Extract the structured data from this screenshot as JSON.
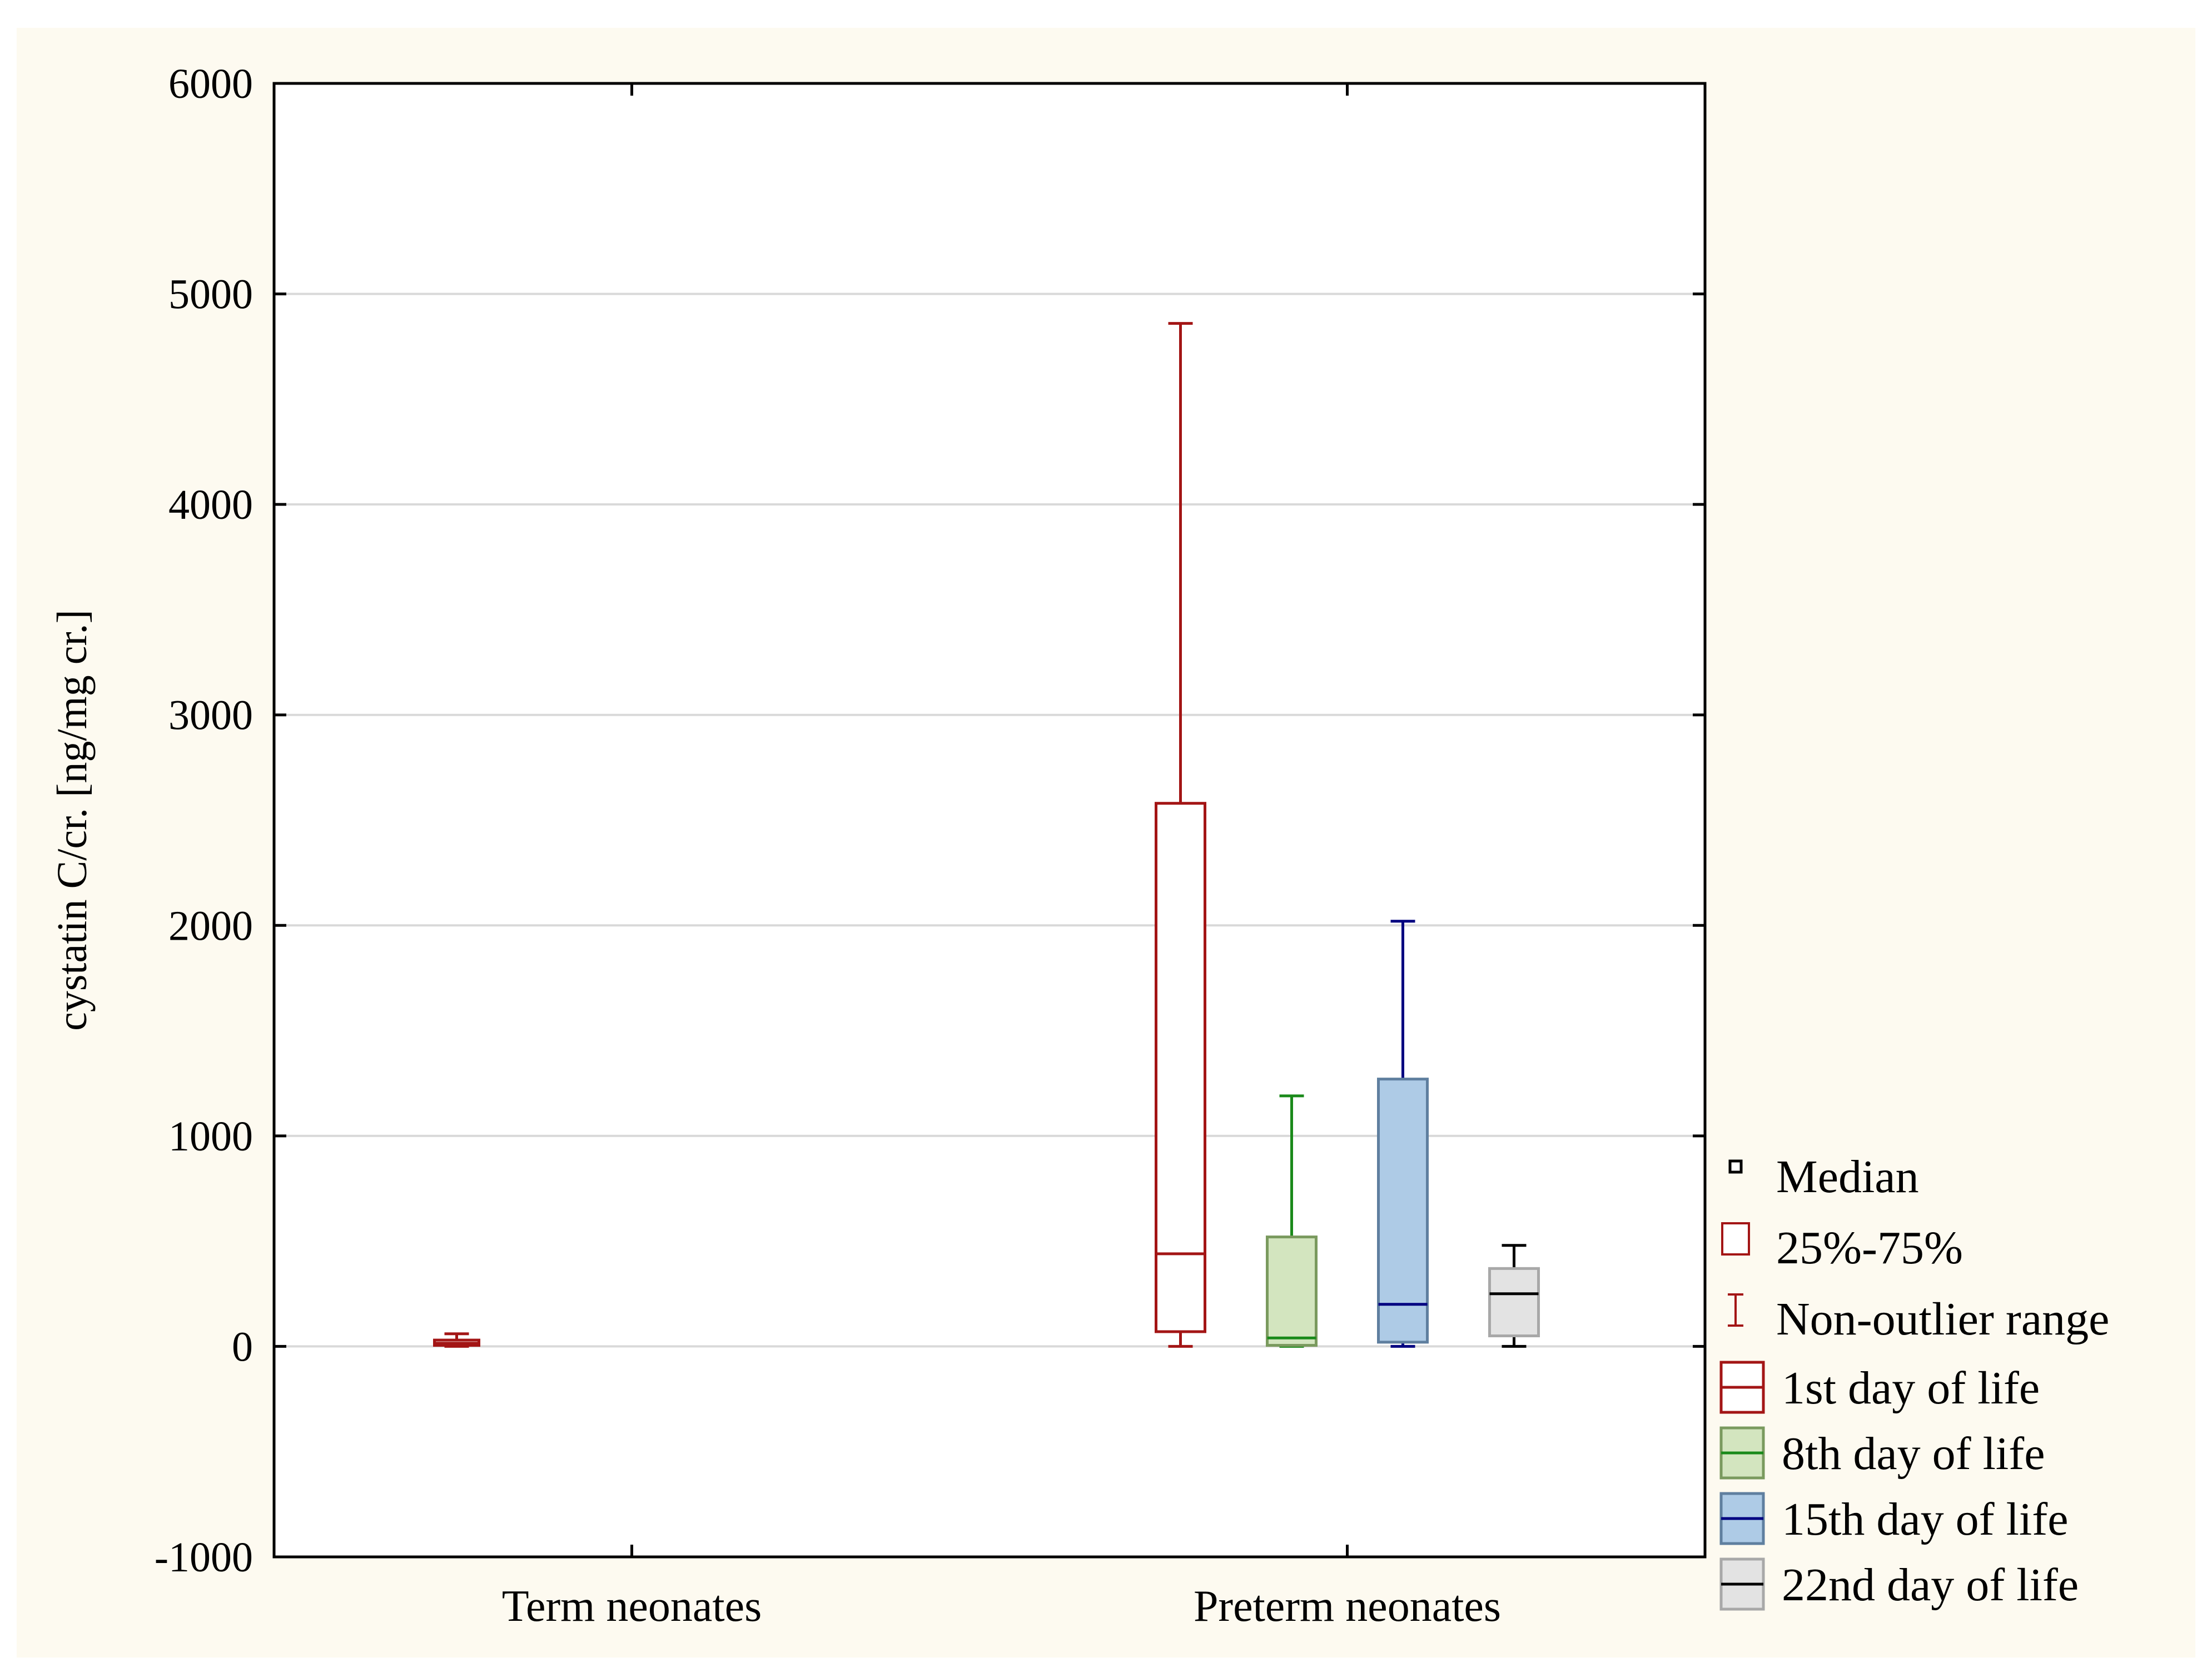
{
  "chart_data": {
    "type": "box",
    "ylabel": "cystatin C/cr. [ng/mg cr.]",
    "xlabel": "",
    "ylim": [
      -1000,
      6000
    ],
    "yticks": [
      -1000,
      0,
      1000,
      2000,
      3000,
      4000,
      5000,
      6000
    ],
    "grid": "horizontal",
    "legend_position": "right-bottom",
    "categories": [
      "Term neonates",
      "Preterm neonates"
    ],
    "series": [
      {
        "name": "1st day of life",
        "edge": "#a31515",
        "fill": "#ffffff",
        "median_color": "#a31515",
        "boxes": [
          {
            "category": "Term neonates",
            "min": 0,
            "q1": 5,
            "median": 15,
            "q3": 30,
            "max": 60
          },
          {
            "category": "Preterm neonates",
            "min": 0,
            "q1": 70,
            "median": 440,
            "q3": 2580,
            "max": 4860
          }
        ]
      },
      {
        "name": "8th day of life",
        "edge": "#7a9a5e",
        "fill": "#d3e5bf",
        "median_color": "#1a8a1a",
        "boxes": [
          {
            "category": "Preterm neonates",
            "min": 0,
            "q1": 5,
            "median": 40,
            "q3": 520,
            "max": 1190
          }
        ]
      },
      {
        "name": "15th day of life",
        "edge": "#5f7f9f",
        "fill": "#aecbe6",
        "median_color": "#000080",
        "boxes": [
          {
            "category": "Preterm neonates",
            "min": 0,
            "q1": 20,
            "median": 200,
            "q3": 1270,
            "max": 2020
          }
        ]
      },
      {
        "name": "22nd day of life",
        "edge": "#a8a8a8",
        "fill": "#e3e3e3",
        "median_color": "#000000",
        "boxes": [
          {
            "category": "Preterm neonates",
            "min": 0,
            "q1": 50,
            "median": 250,
            "q3": 370,
            "max": 480
          }
        ]
      }
    ],
    "legend_keys": [
      {
        "label": "Median",
        "symbol": "median-square",
        "color": "#000000"
      },
      {
        "label": "25%-75%",
        "symbol": "box",
        "color": "#a31515"
      },
      {
        "label": "Non-outlier range",
        "symbol": "whisker",
        "color": "#a31515"
      }
    ]
  }
}
